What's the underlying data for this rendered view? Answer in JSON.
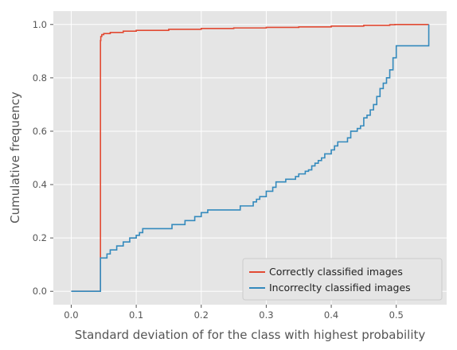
{
  "chart_data": {
    "type": "line",
    "title": "",
    "xlabel": "Standard deviation of for the class with highest probability",
    "ylabel": "Cumulative frequency",
    "xlim": [
      -0.0275,
      0.5775
    ],
    "ylim": [
      -0.05,
      1.05
    ],
    "xticks": [
      0.0,
      0.1,
      0.2,
      0.3,
      0.4,
      0.5
    ],
    "xtick_labels": [
      "0.0",
      "0.1",
      "0.2",
      "0.3",
      "0.4",
      "0.5"
    ],
    "yticks": [
      0.0,
      0.2,
      0.4,
      0.6,
      0.8,
      1.0
    ],
    "ytick_labels": [
      "0.0",
      "0.2",
      "0.4",
      "0.6",
      "0.8",
      "1.0"
    ],
    "grid": true,
    "legend_position": "lower-right",
    "series": [
      {
        "name": "Correctly classified images",
        "color": "#E24A33",
        "x": [
          0.0,
          0.045,
          0.045,
          0.0455,
          0.047,
          0.05,
          0.06,
          0.08,
          0.1,
          0.15,
          0.2,
          0.25,
          0.3,
          0.35,
          0.4,
          0.45,
          0.49,
          0.498,
          0.55
        ],
        "y": [
          0.0,
          0.0,
          0.94,
          0.955,
          0.962,
          0.966,
          0.97,
          0.975,
          0.978,
          0.982,
          0.985,
          0.987,
          0.989,
          0.991,
          0.994,
          0.997,
          0.999,
          1.0,
          1.0
        ]
      },
      {
        "name": "Incorreclty classified images",
        "color": "#348ABD",
        "x": [
          0.0,
          0.045,
          0.045,
          0.055,
          0.06,
          0.065,
          0.07,
          0.08,
          0.09,
          0.1,
          0.105,
          0.11,
          0.15,
          0.155,
          0.175,
          0.19,
          0.2,
          0.21,
          0.26,
          0.28,
          0.285,
          0.29,
          0.3,
          0.31,
          0.315,
          0.33,
          0.345,
          0.35,
          0.36,
          0.365,
          0.37,
          0.375,
          0.38,
          0.385,
          0.39,
          0.4,
          0.405,
          0.41,
          0.425,
          0.43,
          0.44,
          0.445,
          0.45,
          0.455,
          0.46,
          0.465,
          0.47,
          0.475,
          0.48,
          0.485,
          0.49,
          0.495,
          0.5,
          0.55
        ],
        "y": [
          0.0,
          0.0,
          0.125,
          0.14,
          0.155,
          0.155,
          0.17,
          0.185,
          0.2,
          0.21,
          0.22,
          0.235,
          0.235,
          0.25,
          0.265,
          0.28,
          0.295,
          0.305,
          0.32,
          0.335,
          0.345,
          0.355,
          0.375,
          0.39,
          0.41,
          0.42,
          0.43,
          0.44,
          0.45,
          0.455,
          0.47,
          0.48,
          0.49,
          0.5,
          0.515,
          0.53,
          0.545,
          0.56,
          0.575,
          0.6,
          0.61,
          0.62,
          0.65,
          0.66,
          0.68,
          0.7,
          0.73,
          0.76,
          0.78,
          0.8,
          0.83,
          0.875,
          0.92,
          1.0
        ]
      }
    ]
  }
}
